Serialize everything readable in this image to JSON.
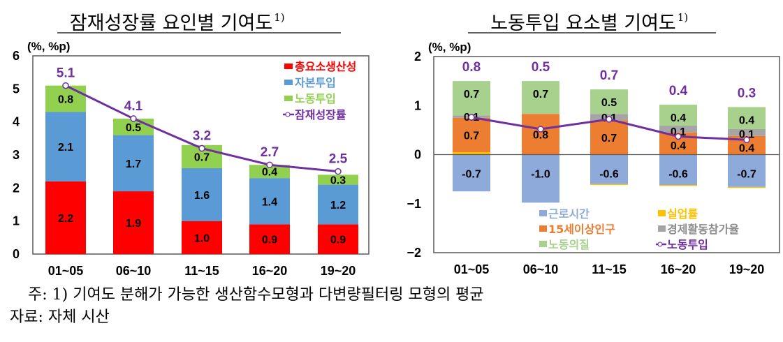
{
  "chart_data": [
    {
      "type": "bar",
      "stacked": true,
      "title": "잠재성장률 요인별 기여도",
      "title_sup": "1)",
      "unit": "(%, %p)",
      "categories": [
        "01~05",
        "06~10",
        "11~15",
        "16~20",
        "19~20"
      ],
      "ylim": [
        0,
        6
      ],
      "yticks": [
        "0",
        "1",
        "2",
        "3",
        "4",
        "5",
        "6"
      ],
      "grid": false,
      "legend": "top-right",
      "series": [
        {
          "name": "총요소생산성",
          "type": "bar",
          "color": "#ff0000",
          "values": [
            2.2,
            1.9,
            1.0,
            0.9,
            0.9
          ],
          "labels": [
            "2.2",
            "1.9",
            "1.0",
            "0.9",
            "0.9"
          ]
        },
        {
          "name": "자본투입",
          "type": "bar",
          "color": "#5b9bd5",
          "values": [
            2.1,
            1.7,
            1.6,
            1.4,
            1.2
          ],
          "labels": [
            "2.1",
            "1.7",
            "1.6",
            "1.4",
            "1.2"
          ]
        },
        {
          "name": "노동투입",
          "type": "bar",
          "color": "#92d050",
          "values": [
            0.8,
            0.5,
            0.7,
            0.4,
            0.3
          ],
          "labels": [
            "0.8",
            "0.5",
            "0.7",
            "0.4",
            "0.3"
          ]
        },
        {
          "name": "잠재성장률",
          "type": "line",
          "color": "#7030a0",
          "values": [
            5.1,
            4.1,
            3.2,
            2.7,
            2.5
          ],
          "labels": [
            "5.1",
            "4.1",
            "3.2",
            "2.7",
            "2.5"
          ]
        }
      ]
    },
    {
      "type": "bar",
      "stacked": true,
      "title": "노동투입 요소별 기여도",
      "title_sup": "1)",
      "unit": "(%, %p)",
      "categories": [
        "01~05",
        "06~10",
        "11~15",
        "16~20",
        "19~20"
      ],
      "ylim": [
        -2,
        2
      ],
      "yticks": [
        "−2",
        "−1",
        "0",
        "1",
        "2"
      ],
      "grid": false,
      "legend": "bottom",
      "series": [
        {
          "name": "근로시간",
          "type": "bar",
          "color": "#8eaadb",
          "values": [
            -0.75,
            -0.98,
            -0.6,
            -0.62,
            -0.66
          ],
          "labels": [
            "-0.7",
            "-1.0",
            "-0.6",
            "-0.6",
            "-0.7"
          ]
        },
        {
          "name": "실업률",
          "type": "bar",
          "color": "#ffc000",
          "values": [
            0.05,
            0,
            -0.02,
            -0.02,
            -0.02
          ],
          "labels": [
            "",
            "",
            "",
            "",
            ""
          ]
        },
        {
          "name": "15세이상인구",
          "type": "bar",
          "color": "#ed7d31",
          "values": [
            0.7,
            0.83,
            0.7,
            0.45,
            0.38
          ],
          "labels": [
            "0.7",
            "0.8",
            "0.7",
            "0.4",
            "0.4"
          ]
        },
        {
          "name": "경제활동참가율",
          "type": "bar",
          "color": "#a5a5a5",
          "values": [
            0.05,
            0,
            0.13,
            0.14,
            0.14
          ],
          "labels": [
            "0.1",
            "",
            "0.1",
            "0.1",
            "0.1"
          ]
        },
        {
          "name": "노동의질",
          "type": "bar",
          "color": "#a9d18e",
          "values": [
            0.7,
            0.67,
            0.5,
            0.43,
            0.45
          ],
          "labels": [
            "0.7",
            "0.7",
            "0.5",
            "0.4",
            "0.4"
          ]
        },
        {
          "name": "노동투입",
          "type": "line",
          "color": "#7030a0",
          "values": [
            0.76,
            0.52,
            0.72,
            0.37,
            0.3
          ],
          "labels": [
            "0.8",
            "0.5",
            "0.7",
            "0.4",
            "0.3"
          ]
        }
      ]
    }
  ],
  "notes": {
    "footnote": "주: 1) 기여도 분해가 가능한 생산함수모형과 다변량필터링 모형의 평균",
    "source": "자료: 자체 시산"
  }
}
